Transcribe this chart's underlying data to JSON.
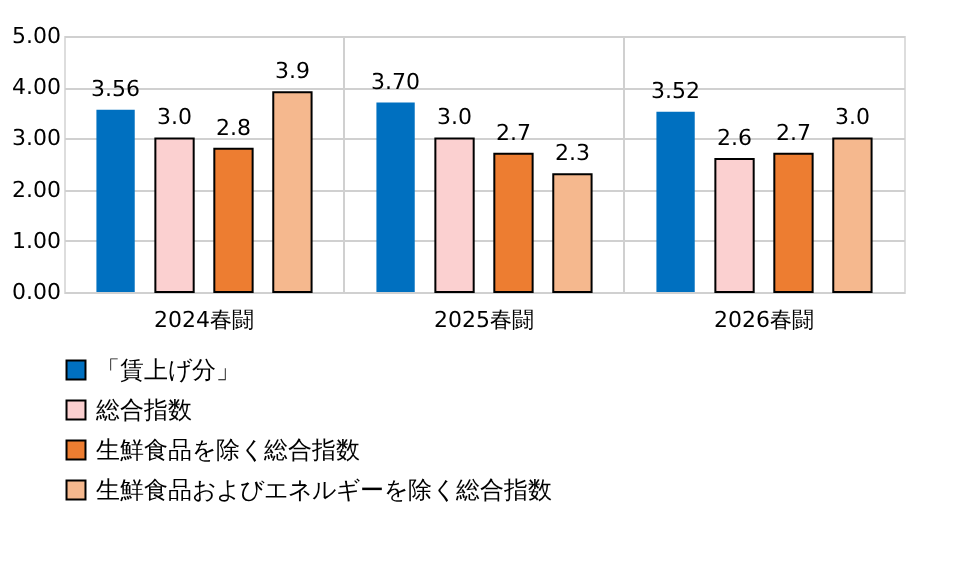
{
  "chart_data": {
    "type": "bar",
    "categories": [
      "2024春闘",
      "2025春闘",
      "2026春闘"
    ],
    "series": [
      {
        "name": "「賃上げ分」",
        "color": "#0070c0",
        "values": [
          3.56,
          3.7,
          3.52
        ],
        "value_labels": [
          "3.56",
          "3.70",
          "3.52"
        ]
      },
      {
        "name": "総合指数",
        "color": "#fbd0d0",
        "values": [
          3.0,
          3.0,
          2.6
        ],
        "value_labels": [
          "3.0",
          "3.0",
          "2.6"
        ]
      },
      {
        "name": "生鮮食品を除く総合指数",
        "color": "#ed7d31",
        "values": [
          2.8,
          2.7,
          2.7
        ],
        "value_labels": [
          "2.8",
          "2.7",
          "2.7"
        ]
      },
      {
        "name": "生鮮食品およびエネルギーを除く総合指数",
        "color": "#f5b88e",
        "values": [
          3.9,
          2.3,
          3.0
        ],
        "value_labels": [
          "3.9",
          "2.3",
          "3.0"
        ]
      }
    ],
    "ylim": [
      0,
      5
    ],
    "yticks": [
      {
        "value": 0,
        "label": "0.00"
      },
      {
        "value": 1,
        "label": "1.00"
      },
      {
        "value": 2,
        "label": "2.00"
      },
      {
        "value": 3,
        "label": "3.00"
      },
      {
        "value": 4,
        "label": "4.00"
      },
      {
        "value": 5,
        "label": "5.00"
      }
    ],
    "grid": true,
    "legend": "bottom"
  }
}
